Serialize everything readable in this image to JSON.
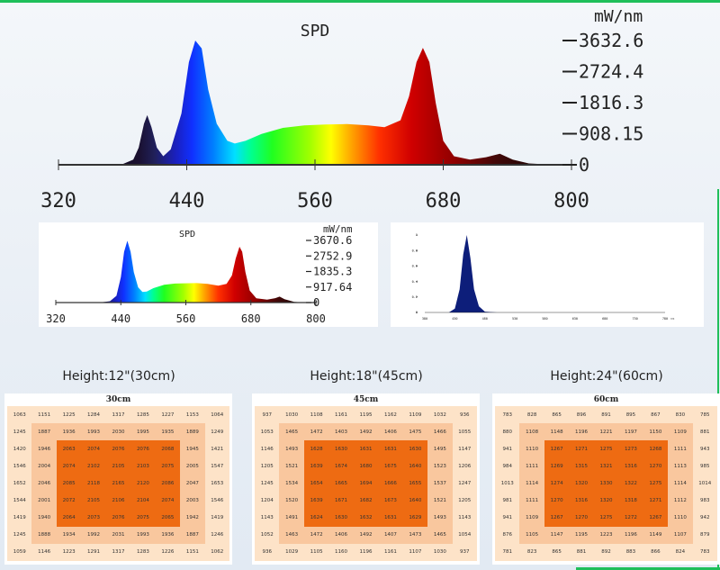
{
  "colors": {
    "accent_line": "#1fbf5a",
    "ppfd_outer": "#fde3c8",
    "ppfd_middle": "#f9c79e",
    "ppfd_inner": "#ee6b12"
  },
  "chart_data": [
    {
      "type": "area",
      "title": "SPD",
      "unit": "mW/nm",
      "xlim": [
        320,
        800
      ],
      "ylim": [
        0,
        3632.6
      ],
      "x_ticks": [
        "320",
        "440",
        "560",
        "680",
        "800"
      ],
      "y_ticks": [
        "3632.6",
        "2724.4",
        "1816.3",
        "908.15",
        "0"
      ],
      "points": [
        [
          320,
          0
        ],
        [
          360,
          0
        ],
        [
          380,
          20
        ],
        [
          390,
          150
        ],
        [
          395,
          500
        ],
        [
          400,
          1200
        ],
        [
          403,
          1450
        ],
        [
          407,
          1100
        ],
        [
          412,
          500
        ],
        [
          418,
          250
        ],
        [
          425,
          450
        ],
        [
          435,
          1500
        ],
        [
          442,
          3000
        ],
        [
          448,
          3632
        ],
        [
          454,
          3400
        ],
        [
          460,
          2200
        ],
        [
          468,
          1200
        ],
        [
          478,
          700
        ],
        [
          485,
          620
        ],
        [
          495,
          700
        ],
        [
          510,
          900
        ],
        [
          530,
          1080
        ],
        [
          550,
          1150
        ],
        [
          570,
          1180
        ],
        [
          590,
          1190
        ],
        [
          610,
          1150
        ],
        [
          625,
          1100
        ],
        [
          640,
          1300
        ],
        [
          648,
          2000
        ],
        [
          655,
          3000
        ],
        [
          661,
          3420
        ],
        [
          667,
          3000
        ],
        [
          673,
          1800
        ],
        [
          680,
          700
        ],
        [
          690,
          250
        ],
        [
          705,
          150
        ],
        [
          720,
          220
        ],
        [
          733,
          320
        ],
        [
          745,
          150
        ],
        [
          760,
          40
        ],
        [
          780,
          5
        ],
        [
          800,
          0
        ]
      ]
    },
    {
      "type": "area",
      "title": "SPD",
      "unit": "mW/nm",
      "xlim": [
        320,
        800
      ],
      "ylim": [
        0,
        3670.6
      ],
      "x_ticks": [
        "320",
        "440",
        "560",
        "680",
        "800"
      ],
      "y_ticks": [
        "3670.6",
        "2752.9",
        "1835.3",
        "917.64",
        "0"
      ],
      "points": [
        [
          320,
          0
        ],
        [
          400,
          0
        ],
        [
          420,
          80
        ],
        [
          432,
          400
        ],
        [
          440,
          1500
        ],
        [
          446,
          3000
        ],
        [
          452,
          3650
        ],
        [
          458,
          3000
        ],
        [
          464,
          1800
        ],
        [
          472,
          900
        ],
        [
          480,
          620
        ],
        [
          488,
          650
        ],
        [
          500,
          850
        ],
        [
          520,
          1050
        ],
        [
          540,
          1120
        ],
        [
          560,
          1140
        ],
        [
          580,
          1150
        ],
        [
          600,
          1100
        ],
        [
          620,
          1000
        ],
        [
          635,
          1100
        ],
        [
          645,
          1600
        ],
        [
          652,
          2600
        ],
        [
          659,
          3300
        ],
        [
          664,
          3000
        ],
        [
          670,
          1800
        ],
        [
          678,
          700
        ],
        [
          690,
          250
        ],
        [
          710,
          170
        ],
        [
          725,
          260
        ],
        [
          733,
          350
        ],
        [
          742,
          200
        ],
        [
          760,
          40
        ],
        [
          780,
          0
        ],
        [
          800,
          0
        ]
      ]
    },
    {
      "type": "area",
      "xlim": [
        380,
        780
      ],
      "ylim": [
        0,
        1
      ],
      "x_ticks": [
        "380",
        "430",
        "480",
        "530",
        "580",
        "630",
        "680",
        "730",
        "780"
      ],
      "x_unit": "nm",
      "y_ticks": [
        "1",
        "0.8",
        "0.6",
        "0.4",
        "0.2",
        "0"
      ],
      "points": [
        [
          380,
          0
        ],
        [
          420,
          0
        ],
        [
          430,
          0.05
        ],
        [
          438,
          0.3
        ],
        [
          444,
          0.75
        ],
        [
          450,
          1
        ],
        [
          456,
          0.7
        ],
        [
          462,
          0.3
        ],
        [
          470,
          0.08
        ],
        [
          480,
          0.01
        ],
        [
          500,
          0
        ],
        [
          780,
          0
        ]
      ]
    }
  ],
  "ppfd": [
    {
      "height_label": "Height:12\"(30cm)",
      "title": "30cm",
      "rows": [
        [
          "1063",
          "1151",
          "1225",
          "1284",
          "1317",
          "1285",
          "1227",
          "1153",
          "1064"
        ],
        [
          "1245",
          "1887",
          "1936",
          "1993",
          "2030",
          "1995",
          "1935",
          "1889",
          "1249"
        ],
        [
          "1420",
          "1946",
          "2063",
          "2074",
          "2076",
          "2076",
          "2068",
          "1945",
          "1421"
        ],
        [
          "1546",
          "2004",
          "2074",
          "2102",
          "2105",
          "2103",
          "2075",
          "2005",
          "1547"
        ],
        [
          "1652",
          "2046",
          "2085",
          "2118",
          "2165",
          "2120",
          "2086",
          "2047",
          "1653"
        ],
        [
          "1544",
          "2001",
          "2072",
          "2105",
          "2106",
          "2104",
          "2074",
          "2003",
          "1546"
        ],
        [
          "1419",
          "1940",
          "2064",
          "2073",
          "2076",
          "2075",
          "2065",
          "1942",
          "1419"
        ],
        [
          "1245",
          "1888",
          "1934",
          "1992",
          "2031",
          "1993",
          "1936",
          "1887",
          "1246"
        ],
        [
          "1059",
          "1146",
          "1223",
          "1291",
          "1317",
          "1283",
          "1226",
          "1151",
          "1062"
        ]
      ]
    },
    {
      "height_label": "Height:18\"(45cm)",
      "title": "45cm",
      "rows": [
        [
          "937",
          "1030",
          "1108",
          "1161",
          "1195",
          "1162",
          "1109",
          "1032",
          "936"
        ],
        [
          "1053",
          "1465",
          "1472",
          "1403",
          "1492",
          "1406",
          "1475",
          "1466",
          "1055"
        ],
        [
          "1146",
          "1493",
          "1628",
          "1630",
          "1631",
          "1631",
          "1630",
          "1495",
          "1147"
        ],
        [
          "1205",
          "1521",
          "1639",
          "1674",
          "1680",
          "1675",
          "1640",
          "1523",
          "1206"
        ],
        [
          "1245",
          "1534",
          "1654",
          "1665",
          "1694",
          "1666",
          "1655",
          "1537",
          "1247"
        ],
        [
          "1204",
          "1520",
          "1639",
          "1671",
          "1682",
          "1673",
          "1640",
          "1521",
          "1205"
        ],
        [
          "1143",
          "1491",
          "1624",
          "1630",
          "1632",
          "1631",
          "1629",
          "1493",
          "1143"
        ],
        [
          "1052",
          "1463",
          "1472",
          "1406",
          "1492",
          "1407",
          "1473",
          "1465",
          "1054"
        ],
        [
          "936",
          "1029",
          "1105",
          "1160",
          "1196",
          "1161",
          "1107",
          "1030",
          "937"
        ]
      ]
    },
    {
      "height_label": "Height:24\"(60cm)",
      "title": "60cm",
      "rows": [
        [
          "783",
          "828",
          "865",
          "896",
          "891",
          "895",
          "867",
          "830",
          "785"
        ],
        [
          "880",
          "1108",
          "1148",
          "1196",
          "1221",
          "1197",
          "1150",
          "1109",
          "881"
        ],
        [
          "941",
          "1110",
          "1267",
          "1271",
          "1275",
          "1273",
          "1268",
          "1111",
          "943"
        ],
        [
          "984",
          "1111",
          "1269",
          "1315",
          "1321",
          "1316",
          "1270",
          "1113",
          "985"
        ],
        [
          "1013",
          "1114",
          "1274",
          "1320",
          "1330",
          "1322",
          "1275",
          "1114",
          "1014"
        ],
        [
          "981",
          "1111",
          "1270",
          "1316",
          "1320",
          "1318",
          "1271",
          "1112",
          "983"
        ],
        [
          "941",
          "1109",
          "1267",
          "1270",
          "1275",
          "1272",
          "1267",
          "1110",
          "942"
        ],
        [
          "876",
          "1105",
          "1147",
          "1195",
          "1223",
          "1196",
          "1149",
          "1107",
          "879"
        ],
        [
          "781",
          "823",
          "865",
          "881",
          "892",
          "883",
          "866",
          "824",
          "783"
        ]
      ]
    }
  ]
}
